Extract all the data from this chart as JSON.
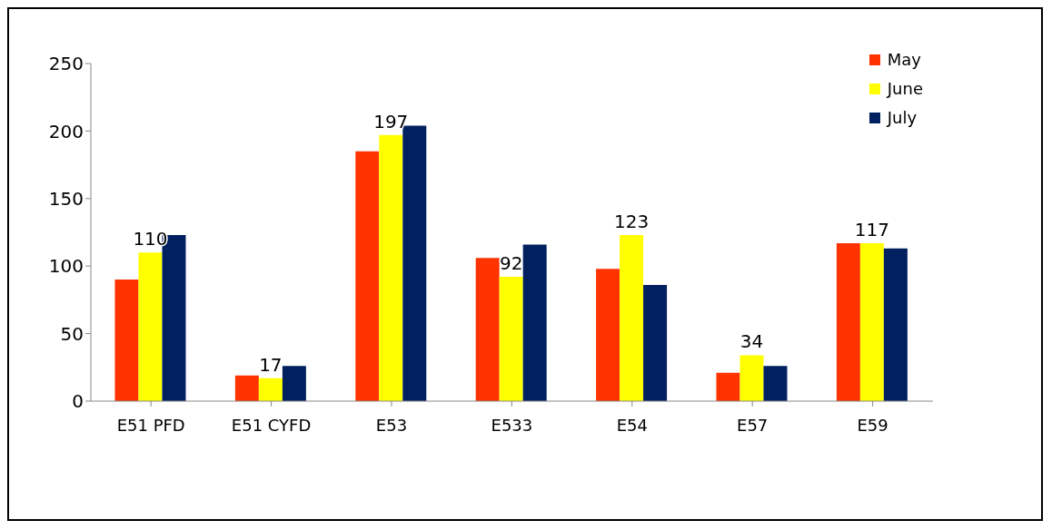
{
  "chart_data": {
    "type": "bar",
    "categories": [
      "E51 PFD",
      "E51 CYFD",
      "E53",
      "E533",
      "E54",
      "E57",
      "E59"
    ],
    "series": [
      {
        "name": "May",
        "color": "#ff3300",
        "values": [
          90,
          19,
          185,
          106,
          98,
          21,
          117
        ]
      },
      {
        "name": "June",
        "color": "#ffff00",
        "values": [
          110,
          17,
          197,
          92,
          123,
          34,
          117
        ],
        "value_labels": [
          "110",
          "17",
          "197",
          "92",
          "123",
          "34",
          "117"
        ]
      },
      {
        "name": "July",
        "color": "#002060",
        "values": [
          123,
          26,
          204,
          116,
          86,
          26,
          113
        ]
      }
    ],
    "ylim": [
      0,
      250
    ],
    "yticks": [
      0,
      50,
      100,
      150,
      200,
      250
    ],
    "grid": false,
    "legend": "top right"
  }
}
